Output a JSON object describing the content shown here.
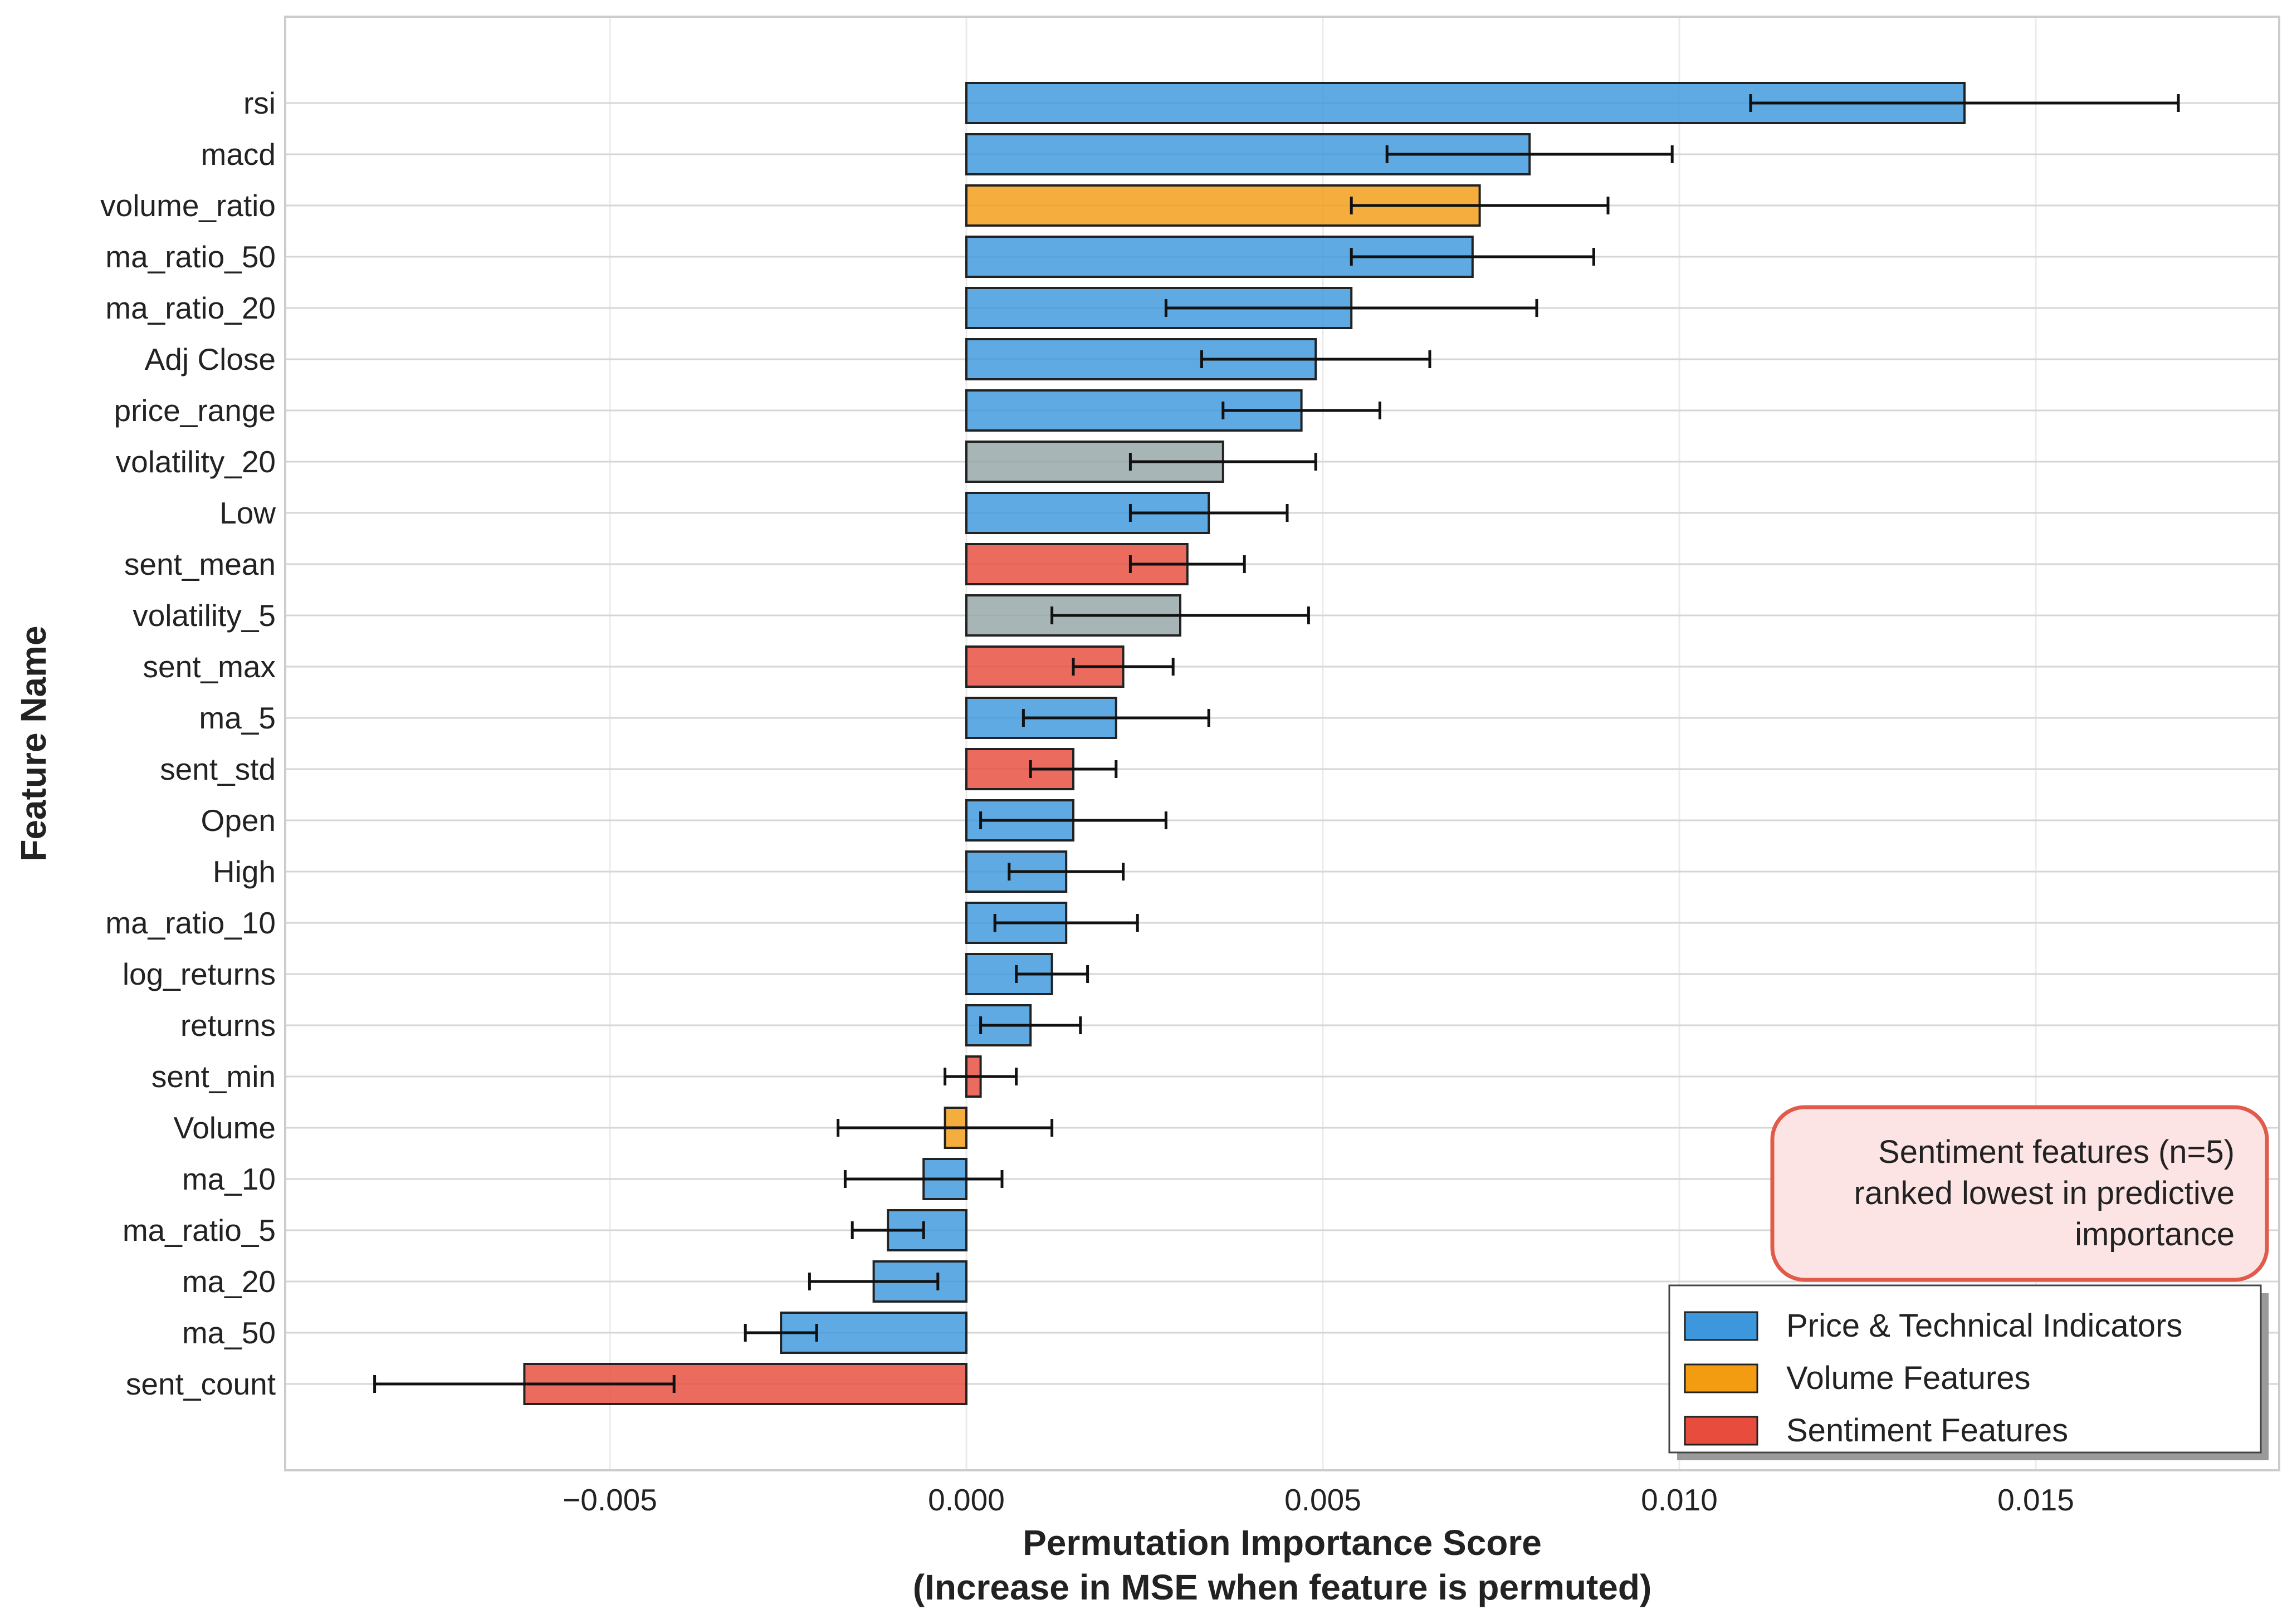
{
  "chart_data": {
    "type": "bar",
    "orientation": "horizontal",
    "title": "",
    "xlabel_line1": "Permutation Importance Score",
    "xlabel_line2": "(Increase in MSE when feature is permuted)",
    "ylabel": "Feature Name",
    "xlim": [
      -0.0095,
      0.018
    ],
    "xticks": [
      -0.005,
      0.0,
      0.005,
      0.01,
      0.015
    ],
    "xtick_labels": [
      "−0.005",
      "0.000",
      "0.005",
      "0.010",
      "0.015"
    ],
    "grid": true,
    "legend_position": "lower-right",
    "colors": {
      "price": "#3c97dc",
      "volume": "#f39c12",
      "sentiment": "#e74c3c",
      "other": "#95a5a6"
    },
    "features": [
      {
        "name": "rsi",
        "value": 0.014,
        "error": 0.003,
        "group": "price"
      },
      {
        "name": "macd",
        "value": 0.0079,
        "error": 0.002,
        "group": "price"
      },
      {
        "name": "volume_ratio",
        "value": 0.0072,
        "error": 0.0018,
        "group": "volume"
      },
      {
        "name": "ma_ratio_50",
        "value": 0.0071,
        "error": 0.0017,
        "group": "price"
      },
      {
        "name": "ma_ratio_20",
        "value": 0.0054,
        "error": 0.0026,
        "group": "price"
      },
      {
        "name": "Adj Close",
        "value": 0.0049,
        "error": 0.0016,
        "group": "price"
      },
      {
        "name": "price_range",
        "value": 0.0047,
        "error": 0.0011,
        "group": "price"
      },
      {
        "name": "volatility_20",
        "value": 0.0036,
        "error": 0.0013,
        "group": "other"
      },
      {
        "name": "Low",
        "value": 0.0034,
        "error": 0.0011,
        "group": "price"
      },
      {
        "name": "sent_mean",
        "value": 0.0031,
        "error": 0.0008,
        "group": "sentiment"
      },
      {
        "name": "volatility_5",
        "value": 0.003,
        "error": 0.0018,
        "group": "other"
      },
      {
        "name": "sent_max",
        "value": 0.0022,
        "error": 0.0007,
        "group": "sentiment"
      },
      {
        "name": "ma_5",
        "value": 0.0021,
        "error": 0.0013,
        "group": "price"
      },
      {
        "name": "sent_std",
        "value": 0.0015,
        "error": 0.0006,
        "group": "sentiment"
      },
      {
        "name": "Open",
        "value": 0.0015,
        "error": 0.0013,
        "group": "price"
      },
      {
        "name": "High",
        "value": 0.0014,
        "error": 0.0008,
        "group": "price"
      },
      {
        "name": "ma_ratio_10",
        "value": 0.0014,
        "error": 0.001,
        "group": "price"
      },
      {
        "name": "log_returns",
        "value": 0.0012,
        "error": 0.0005,
        "group": "price"
      },
      {
        "name": "returns",
        "value": 0.0009,
        "error": 0.0007,
        "group": "price"
      },
      {
        "name": "sent_min",
        "value": 0.0002,
        "error": 0.0005,
        "group": "sentiment"
      },
      {
        "name": "Volume",
        "value": -0.0003,
        "error": 0.0015,
        "group": "volume"
      },
      {
        "name": "ma_10",
        "value": -0.0006,
        "error": 0.0011,
        "group": "price"
      },
      {
        "name": "ma_ratio_5",
        "value": -0.0011,
        "error": 0.0005,
        "group": "price"
      },
      {
        "name": "ma_20",
        "value": -0.0013,
        "error": 0.0009,
        "group": "price"
      },
      {
        "name": "ma_50",
        "value": -0.0026,
        "error": 0.0005,
        "group": "price"
      },
      {
        "name": "sent_count",
        "value": -0.0062,
        "error": 0.0021,
        "group": "sentiment"
      }
    ],
    "legend": [
      {
        "label": "Price & Technical Indicators",
        "group": "price"
      },
      {
        "label": "Volume Features",
        "group": "volume"
      },
      {
        "label": "Sentiment Features",
        "group": "sentiment"
      }
    ],
    "annotation": {
      "lines": [
        "Sentiment features (n=5)",
        "ranked lowest in predictive",
        "importance"
      ]
    }
  }
}
